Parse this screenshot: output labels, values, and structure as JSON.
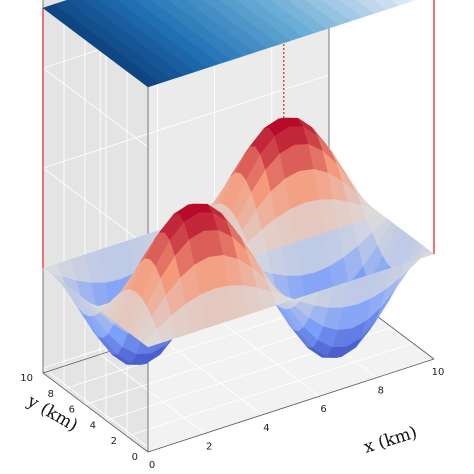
{
  "chart_data": {
    "type": "surface3d",
    "title": "",
    "xlabel": "x (km)",
    "ylabel": "y (km)",
    "xlim": [
      0,
      10
    ],
    "ylim": [
      0,
      10
    ],
    "x_ticks": [
      0,
      2,
      4,
      6,
      8,
      10
    ],
    "y_ticks": [
      0,
      2,
      4,
      6,
      8,
      10
    ],
    "grid": true,
    "colormaps": {
      "bottom_surface": "coolwarm",
      "top_plane": "Blues"
    },
    "surfaces": [
      {
        "name": "",
        "role": "bottom",
        "function": "sin(pi*x/5)*sin(pi*y/5)",
        "amplitude": 1.0,
        "peaks": [
          [
            2.5,
            2.5
          ],
          [
            7.5,
            7.5
          ]
        ],
        "troughs": [
          [
            2.5,
            7.5
          ],
          [
            7.5,
            2.5
          ]
        ]
      },
      {
        "name": "",
        "role": "top",
        "shape": "flat plane colored by x",
        "z": 2.6
      }
    ],
    "vertical_lines": [
      {
        "x": 0,
        "y": 10,
        "style": "solid",
        "color": "#e03030"
      },
      {
        "x": 10,
        "y": 0,
        "style": "solid",
        "color": "#e03030"
      },
      {
        "x": 7.5,
        "y": 7.5,
        "style": "dotted",
        "color": "#e03030"
      }
    ]
  }
}
